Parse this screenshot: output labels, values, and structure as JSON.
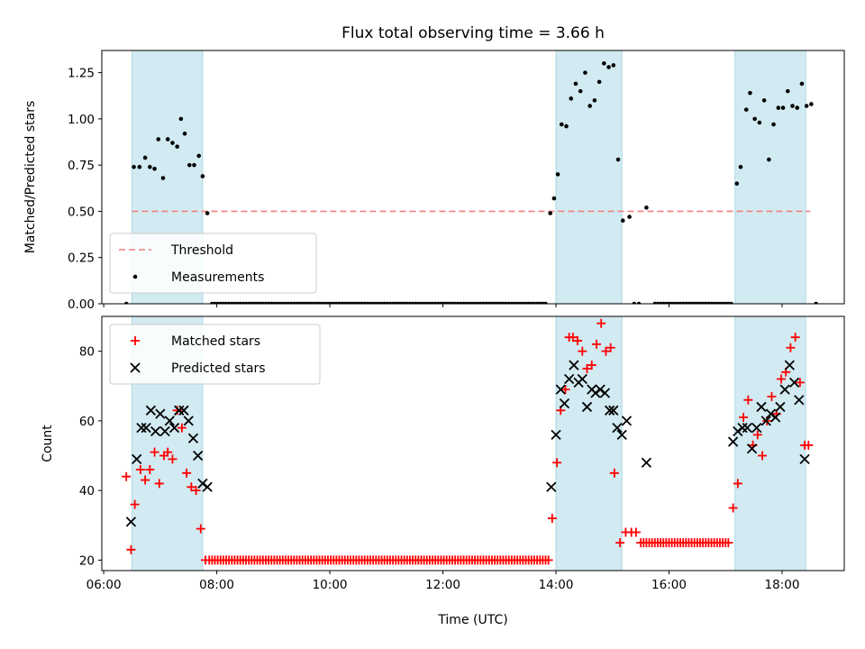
{
  "chart_data": {
    "title": "Flux total observing time = 3.66 h",
    "xlabel": "Time (UTC)",
    "x_unit": "hours UTC",
    "x_ticks": [
      "06:00",
      "08:00",
      "10:00",
      "12:00",
      "14:00",
      "16:00",
      "18:00"
    ],
    "x_tick_values": [
      6,
      8,
      10,
      12,
      14,
      16,
      18
    ],
    "x_range": [
      "05:58",
      "19:06"
    ],
    "shaded_intervals": [
      [
        "06:30",
        "07:45"
      ],
      [
        "14:00",
        "15:10"
      ],
      [
        "17:10",
        "18:25"
      ]
    ],
    "shade_color": "#add8e6",
    "panels": [
      {
        "type": "scatter",
        "ylabel": "Matched/Predicted stars",
        "ylim": [
          0,
          1.37
        ],
        "y_ticks": [
          "0.00",
          "0.25",
          "0.50",
          "0.75",
          "1.00",
          "1.25"
        ],
        "y_tick_values": [
          0,
          0.25,
          0.5,
          0.75,
          1.0,
          1.25
        ],
        "legend_position": "lower-left",
        "threshold": {
          "name": "Threshold",
          "value": 0.5,
          "color": "#f08080",
          "style": "dashed"
        },
        "series": [
          {
            "name": "Measurements",
            "marker": "dot",
            "color": "#000000",
            "points": [
              [
                "06:24",
                0.0
              ],
              [
                "06:32",
                0.74
              ],
              [
                "06:38",
                0.74
              ],
              [
                "06:44",
                0.79
              ],
              [
                "06:49",
                0.74
              ],
              [
                "06:54",
                0.73
              ],
              [
                "06:58",
                0.89
              ],
              [
                "07:03",
                0.68
              ],
              [
                "07:08",
                0.89
              ],
              [
                "07:13",
                0.87
              ],
              [
                "07:18",
                0.85
              ],
              [
                "07:22",
                1.0
              ],
              [
                "07:26",
                0.92
              ],
              [
                "07:31",
                0.75
              ],
              [
                "07:36",
                0.75
              ],
              [
                "07:41",
                0.8
              ],
              [
                "07:45",
                0.69
              ],
              [
                "07:50",
                0.49
              ],
              [
                "13:54",
                0.49
              ],
              [
                "13:58",
                0.57
              ],
              [
                "14:02",
                0.7
              ],
              [
                "14:06",
                0.97
              ],
              [
                "14:11",
                0.96
              ],
              [
                "14:16",
                1.11
              ],
              [
                "14:21",
                1.19
              ],
              [
                "14:26",
                1.15
              ],
              [
                "14:31",
                1.25
              ],
              [
                "14:36",
                1.07
              ],
              [
                "14:41",
                1.1
              ],
              [
                "14:46",
                1.2
              ],
              [
                "14:51",
                1.3
              ],
              [
                "14:56",
                1.28
              ],
              [
                "15:01",
                1.29
              ],
              [
                "15:06",
                0.78
              ],
              [
                "15:11",
                0.45
              ],
              [
                "15:18",
                0.47
              ],
              [
                "15:23",
                0.0
              ],
              [
                "15:28",
                0.0
              ],
              [
                "15:36",
                0.52
              ],
              [
                "17:12",
                0.65
              ],
              [
                "17:16",
                0.74
              ],
              [
                "17:22",
                1.05
              ],
              [
                "17:26",
                1.14
              ],
              [
                "17:31",
                1.0
              ],
              [
                "17:36",
                0.98
              ],
              [
                "17:41",
                1.1
              ],
              [
                "17:46",
                0.78
              ],
              [
                "17:51",
                0.97
              ],
              [
                "17:56",
                1.06
              ],
              [
                "18:01",
                1.06
              ],
              [
                "18:06",
                1.15
              ],
              [
                "18:11",
                1.07
              ],
              [
                "18:16",
                1.06
              ],
              [
                "18:21",
                1.19
              ],
              [
                "18:26",
                1.07
              ],
              [
                "18:31",
                1.08
              ],
              [
                "18:36",
                0.0
              ]
            ],
            "zero_runs": [
              [
                "07:55",
                "13:50"
              ],
              [
                "15:45",
                "17:08"
              ]
            ],
            "zero_run_step_min": 3
          }
        ]
      },
      {
        "type": "scatter",
        "ylabel": "Count",
        "ylim": [
          17,
          90
        ],
        "y_ticks": [
          "20",
          "40",
          "60",
          "80"
        ],
        "y_tick_values": [
          20,
          40,
          60,
          80
        ],
        "legend_position": "upper-left",
        "series": [
          {
            "name": "Matched stars",
            "marker": "plus",
            "color": "#ff0000",
            "points": [
              [
                "06:24",
                44
              ],
              [
                "06:29",
                23
              ],
              [
                "06:33",
                36
              ],
              [
                "06:39",
                46
              ],
              [
                "06:44",
                43
              ],
              [
                "06:49",
                46
              ],
              [
                "06:54",
                51
              ],
              [
                "06:59",
                42
              ],
              [
                "07:04",
                50
              ],
              [
                "07:08",
                51
              ],
              [
                "07:13",
                49
              ],
              [
                "07:18",
                63
              ],
              [
                "07:23",
                58
              ],
              [
                "07:28",
                45
              ],
              [
                "07:33",
                41
              ],
              [
                "07:38",
                40
              ],
              [
                "07:43",
                29
              ],
              [
                "07:48",
                20
              ],
              [
                "13:56",
                32
              ],
              [
                "14:01",
                48
              ],
              [
                "14:05",
                63
              ],
              [
                "14:10",
                69
              ],
              [
                "14:14",
                84
              ],
              [
                "14:18",
                84
              ],
              [
                "14:23",
                83
              ],
              [
                "14:28",
                80
              ],
              [
                "14:33",
                75
              ],
              [
                "14:38",
                76
              ],
              [
                "14:43",
                82
              ],
              [
                "14:48",
                88
              ],
              [
                "14:53",
                80
              ],
              [
                "14:58",
                81
              ],
              [
                "15:02",
                45
              ],
              [
                "15:08",
                25
              ],
              [
                "15:14",
                28
              ],
              [
                "15:20",
                28
              ],
              [
                "15:25",
                28
              ],
              [
                "17:08",
                35
              ],
              [
                "17:13",
                42
              ],
              [
                "17:19",
                61
              ],
              [
                "17:24",
                66
              ],
              [
                "17:29",
                53
              ],
              [
                "17:34",
                56
              ],
              [
                "17:39",
                50
              ],
              [
                "17:44",
                60
              ],
              [
                "17:49",
                67
              ],
              [
                "17:54",
                62
              ],
              [
                "17:59",
                72
              ],
              [
                "18:04",
                74
              ],
              [
                "18:09",
                81
              ],
              [
                "18:14",
                84
              ],
              [
                "18:19",
                71
              ],
              [
                "18:24",
                53
              ],
              [
                "18:28",
                53
              ]
            ],
            "flat_runs": [
              {
                "from": "07:52",
                "to": "13:52",
                "value": 20
              },
              {
                "from": "15:30",
                "to": "17:05",
                "value": 25
              }
            ],
            "flat_run_step_min": 3
          },
          {
            "name": "Predicted stars",
            "marker": "x",
            "color": "#000000",
            "points": [
              [
                "06:29",
                31
              ],
              [
                "06:35",
                49
              ],
              [
                "06:40",
                58
              ],
              [
                "06:45",
                58
              ],
              [
                "06:50",
                63
              ],
              [
                "06:55",
                57
              ],
              [
                "07:00",
                62
              ],
              [
                "07:05",
                57
              ],
              [
                "07:10",
                60
              ],
              [
                "07:15",
                58
              ],
              [
                "07:20",
                63
              ],
              [
                "07:25",
                63
              ],
              [
                "07:30",
                60
              ],
              [
                "07:35",
                55
              ],
              [
                "07:40",
                50
              ],
              [
                "07:45",
                42
              ],
              [
                "07:50",
                41
              ],
              [
                "13:55",
                41
              ],
              [
                "14:00",
                56
              ],
              [
                "14:05",
                69
              ],
              [
                "14:09",
                65
              ],
              [
                "14:14",
                72
              ],
              [
                "14:19",
                76
              ],
              [
                "14:24",
                71
              ],
              [
                "14:28",
                72
              ],
              [
                "14:33",
                64
              ],
              [
                "14:38",
                69
              ],
              [
                "14:42",
                68
              ],
              [
                "14:47",
                69
              ],
              [
                "14:52",
                68
              ],
              [
                "14:57",
                63
              ],
              [
                "15:01",
                63
              ],
              [
                "15:05",
                58
              ],
              [
                "15:10",
                56
              ],
              [
                "15:15",
                60
              ],
              [
                "15:36",
                48
              ],
              [
                "17:08",
                54
              ],
              [
                "17:13",
                57
              ],
              [
                "17:18",
                58
              ],
              [
                "17:23",
                58
              ],
              [
                "17:28",
                52
              ],
              [
                "17:33",
                58
              ],
              [
                "17:38",
                64
              ],
              [
                "17:43",
                60
              ],
              [
                "17:48",
                62
              ],
              [
                "17:53",
                61
              ],
              [
                "17:58",
                64
              ],
              [
                "18:03",
                69
              ],
              [
                "18:08",
                76
              ],
              [
                "18:13",
                71
              ],
              [
                "18:18",
                66
              ],
              [
                "18:24",
                49
              ]
            ]
          }
        ]
      }
    ]
  }
}
